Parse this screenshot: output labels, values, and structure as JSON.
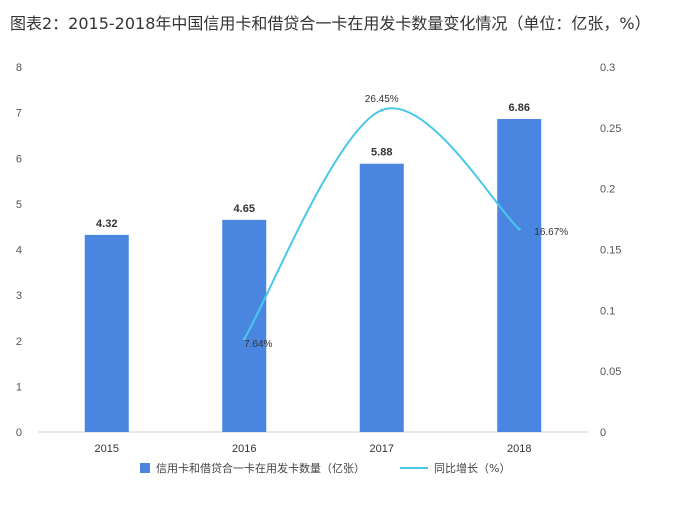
{
  "title": "图表2：2015-2018年中国信用卡和借贷合一卡在用发卡数量变化情况（单位：亿张，%）",
  "chart_data": {
    "type": "bar+line",
    "categories": [
      "2015",
      "2016",
      "2017",
      "2018"
    ],
    "series": [
      {
        "name": "信用卡和借贷合一卡在用发卡数量（亿张）",
        "type": "bar",
        "axis": "left",
        "color": "#4a86e0",
        "values": [
          4.32,
          4.65,
          5.88,
          6.86
        ],
        "labels": [
          "4.32",
          "4.65",
          "5.88",
          "6.86"
        ]
      },
      {
        "name": "同比增长（%）",
        "type": "line",
        "axis": "right",
        "color": "#49c8ea",
        "values": [
          null,
          0.0764,
          0.2645,
          0.1667
        ],
        "labels": [
          "",
          "7.64%",
          "26.45%",
          "16.67%"
        ]
      }
    ],
    "left_axis": {
      "ylim": [
        0,
        8
      ],
      "ticks": [
        "0",
        "1",
        "2",
        "3",
        "4",
        "5",
        "6",
        "7",
        "8"
      ]
    },
    "right_axis": {
      "ylim": [
        0,
        0.3
      ],
      "ticks": [
        "0",
        "0.05",
        "0.1",
        "0.15",
        "0.2",
        "0.25",
        "0.3"
      ]
    },
    "grid": false,
    "legend_position": "bottom"
  }
}
